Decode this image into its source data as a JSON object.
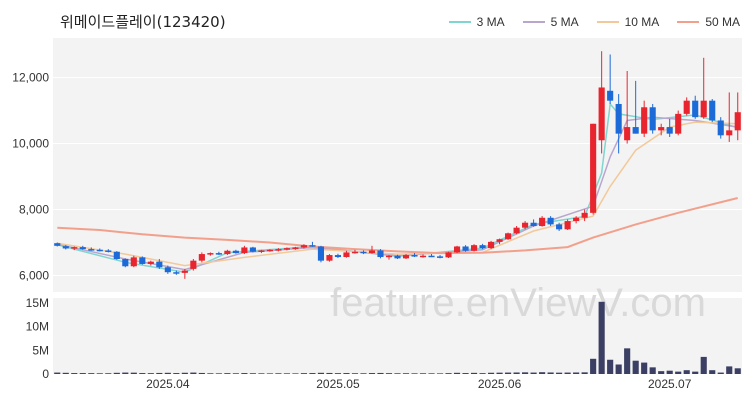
{
  "title": "위메이드플레이(123420)",
  "legend": [
    {
      "label": "3 MA",
      "color": "#7fd6d0"
    },
    {
      "label": "5 MA",
      "color": "#b9a6cf"
    },
    {
      "label": "10 MA",
      "color": "#f2c99a"
    },
    {
      "label": "50 MA",
      "color": "#f2a08c"
    }
  ],
  "watermark": "feature.enViewV.com",
  "colors": {
    "up": "#e8252e",
    "down": "#1b6ad8",
    "volume": "#3b3f63",
    "grid_bg": "#f3f3f3"
  },
  "chart_data": {
    "type": "candlestick",
    "price_axis": {
      "ticks": [
        6000,
        8000,
        10000,
        12000
      ],
      "tick_labels": [
        "6,000",
        "8,000",
        "10,000",
        "12,000"
      ],
      "ylim": [
        5500,
        13200
      ]
    },
    "volume_axis": {
      "ticks": [
        0,
        5000000,
        10000000,
        15000000
      ],
      "tick_labels": [
        "0",
        "5M",
        "10M",
        "15M"
      ],
      "ylim": [
        0,
        16000000
      ]
    },
    "x_ticks": [
      {
        "index": 13,
        "label": "2025.04"
      },
      {
        "index": 33,
        "label": "2025.05"
      },
      {
        "index": 52,
        "label": "2025.06"
      },
      {
        "index": 72,
        "label": "2025.07"
      }
    ],
    "candles": [
      [
        6980,
        7000,
        6880,
        6900
      ],
      [
        6890,
        6920,
        6790,
        6820
      ],
      [
        6820,
        6880,
        6770,
        6860
      ],
      [
        6860,
        6900,
        6780,
        6800
      ],
      [
        6800,
        6850,
        6750,
        6780
      ],
      [
        6780,
        6820,
        6730,
        6760
      ],
      [
        6760,
        6800,
        6700,
        6720
      ],
      [
        6720,
        6740,
        6480,
        6500
      ],
      [
        6500,
        6520,
        6250,
        6280
      ],
      [
        6280,
        6600,
        6250,
        6550
      ],
      [
        6550,
        6580,
        6330,
        6350
      ],
      [
        6350,
        6450,
        6300,
        6420
      ],
      [
        6420,
        6500,
        6200,
        6250
      ],
      [
        6250,
        6300,
        6050,
        6100
      ],
      [
        6100,
        6150,
        6020,
        6080
      ],
      [
        6080,
        6200,
        5900,
        6150
      ],
      [
        6200,
        6500,
        6150,
        6450
      ],
      [
        6450,
        6700,
        6400,
        6650
      ],
      [
        6650,
        6700,
        6600,
        6680
      ],
      [
        6680,
        6720,
        6620,
        6650
      ],
      [
        6650,
        6780,
        6620,
        6750
      ],
      [
        6750,
        6780,
        6660,
        6680
      ],
      [
        6680,
        6900,
        6650,
        6850
      ],
      [
        6850,
        6870,
        6700,
        6720
      ],
      [
        6720,
        6780,
        6680,
        6760
      ],
      [
        6760,
        6800,
        6720,
        6780
      ],
      [
        6780,
        6830,
        6730,
        6800
      ],
      [
        6800,
        6850,
        6760,
        6830
      ],
      [
        6830,
        6870,
        6780,
        6850
      ],
      [
        6850,
        6950,
        6820,
        6920
      ],
      [
        6920,
        7020,
        6870,
        6880
      ],
      [
        6880,
        6900,
        6400,
        6450
      ],
      [
        6450,
        6650,
        6420,
        6620
      ],
      [
        6620,
        6660,
        6530,
        6560
      ],
      [
        6560,
        6750,
        6540,
        6700
      ],
      [
        6700,
        6780,
        6660,
        6720
      ],
      [
        6720,
        6760,
        6650,
        6680
      ],
      [
        6680,
        6900,
        6660,
        6760
      ],
      [
        6760,
        6800,
        6520,
        6560
      ],
      [
        6560,
        6620,
        6480,
        6600
      ],
      [
        6600,
        6630,
        6500,
        6520
      ],
      [
        6520,
        6650,
        6500,
        6620
      ],
      [
        6620,
        6680,
        6560,
        6580
      ],
      [
        6580,
        6640,
        6540,
        6600
      ],
      [
        6600,
        6650,
        6560,
        6580
      ],
      [
        6580,
        6620,
        6520,
        6550
      ],
      [
        6550,
        6720,
        6530,
        6700
      ],
      [
        6700,
        6900,
        6680,
        6880
      ],
      [
        6880,
        6920,
        6720,
        6750
      ],
      [
        6750,
        6950,
        6730,
        6920
      ],
      [
        6920,
        6960,
        6800,
        6830
      ],
      [
        6830,
        7050,
        6800,
        7020
      ],
      [
        7020,
        7120,
        6950,
        7100
      ],
      [
        7100,
        7300,
        7080,
        7280
      ],
      [
        7280,
        7500,
        7250,
        7450
      ],
      [
        7450,
        7650,
        7400,
        7600
      ],
      [
        7600,
        7700,
        7480,
        7500
      ],
      [
        7500,
        7800,
        7480,
        7750
      ],
      [
        7750,
        7800,
        7500,
        7550
      ],
      [
        7550,
        7600,
        7350,
        7400
      ],
      [
        7400,
        7700,
        7380,
        7650
      ],
      [
        7650,
        7800,
        7580,
        7750
      ],
      [
        7750,
        8000,
        7650,
        7900
      ],
      [
        7900,
        10600,
        7850,
        10600
      ],
      [
        10100,
        12800,
        9700,
        11700
      ],
      [
        11600,
        12700,
        11200,
        11300
      ],
      [
        11200,
        11500,
        9700,
        10300
      ],
      [
        10100,
        12200,
        10000,
        10500
      ],
      [
        10500,
        11900,
        10300,
        10300
      ],
      [
        10300,
        11300,
        10200,
        11100
      ],
      [
        11100,
        11200,
        10300,
        10400
      ],
      [
        10400,
        10600,
        10250,
        10500
      ],
      [
        10500,
        10750,
        10200,
        10300
      ],
      [
        10300,
        11000,
        10250,
        10900
      ],
      [
        10900,
        11400,
        10850,
        11300
      ],
      [
        11300,
        11450,
        10750,
        10800
      ],
      [
        10800,
        12600,
        10750,
        11300
      ],
      [
        11300,
        11350,
        10650,
        10700
      ],
      [
        10700,
        10800,
        10150,
        10250
      ],
      [
        10250,
        11550,
        10050,
        10400
      ],
      [
        10400,
        11550,
        10100,
        10950
      ]
    ],
    "volumes": [
      300000,
      250000,
      200000,
      200000,
      180000,
      150000,
      160000,
      250000,
      300000,
      280000,
      200000,
      180000,
      220000,
      250000,
      200000,
      260000,
      300000,
      220000,
      150000,
      140000,
      180000,
      150000,
      200000,
      160000,
      140000,
      130000,
      150000,
      140000,
      130000,
      180000,
      200000,
      250000,
      220000,
      180000,
      200000,
      160000,
      150000,
      200000,
      220000,
      180000,
      150000,
      160000,
      140000,
      150000,
      140000,
      130000,
      180000,
      250000,
      200000,
      240000,
      180000,
      260000,
      280000,
      300000,
      320000,
      350000,
      300000,
      380000,
      320000,
      280000,
      300000,
      320000,
      350000,
      3200000,
      15200000,
      3000000,
      2000000,
      5400000,
      2800000,
      2400000,
      1400000,
      600000,
      700000,
      500000,
      800000,
      500000,
      3600000,
      800000,
      300000,
      1600000,
      1200000
    ],
    "ma_lines": {
      "ma3": [
        [
          0,
          6930
        ],
        [
          8,
          6400
        ],
        [
          15,
          6100
        ],
        [
          20,
          6690
        ],
        [
          30,
          6880
        ],
        [
          40,
          6580
        ],
        [
          50,
          6830
        ],
        [
          56,
          7550
        ],
        [
          62,
          7790
        ],
        [
          64,
          9100
        ],
        [
          65,
          11200
        ],
        [
          66,
          10900
        ],
        [
          70,
          10730
        ],
        [
          75,
          10870
        ],
        [
          80,
          10480
        ]
      ],
      "ma5": [
        [
          0,
          6950
        ],
        [
          8,
          6500
        ],
        [
          15,
          6180
        ],
        [
          22,
          6700
        ],
        [
          30,
          6850
        ],
        [
          40,
          6600
        ],
        [
          50,
          6780
        ],
        [
          56,
          7500
        ],
        [
          63,
          8100
        ],
        [
          65,
          9600
        ],
        [
          67,
          10700
        ],
        [
          70,
          10800
        ],
        [
          75,
          10700
        ],
        [
          80,
          10500
        ]
      ],
      "ma10": [
        [
          0,
          6980
        ],
        [
          8,
          6650
        ],
        [
          15,
          6300
        ],
        [
          22,
          6550
        ],
        [
          30,
          6800
        ],
        [
          40,
          6650
        ],
        [
          50,
          6700
        ],
        [
          56,
          7350
        ],
        [
          63,
          7800
        ],
        [
          65,
          8700
        ],
        [
          68,
          9800
        ],
        [
          72,
          10500
        ],
        [
          75,
          10650
        ],
        [
          80,
          10600
        ]
      ],
      "ma50": [
        [
          0,
          7450
        ],
        [
          5,
          7380
        ],
        [
          10,
          7250
        ],
        [
          15,
          7150
        ],
        [
          20,
          7080
        ],
        [
          25,
          7000
        ],
        [
          30,
          6880
        ],
        [
          35,
          6800
        ],
        [
          40,
          6730
        ],
        [
          45,
          6680
        ],
        [
          50,
          6690
        ],
        [
          55,
          6760
        ],
        [
          60,
          6860
        ],
        [
          63,
          7150
        ],
        [
          68,
          7550
        ],
        [
          73,
          7900
        ],
        [
          80,
          8350
        ]
      ]
    }
  }
}
